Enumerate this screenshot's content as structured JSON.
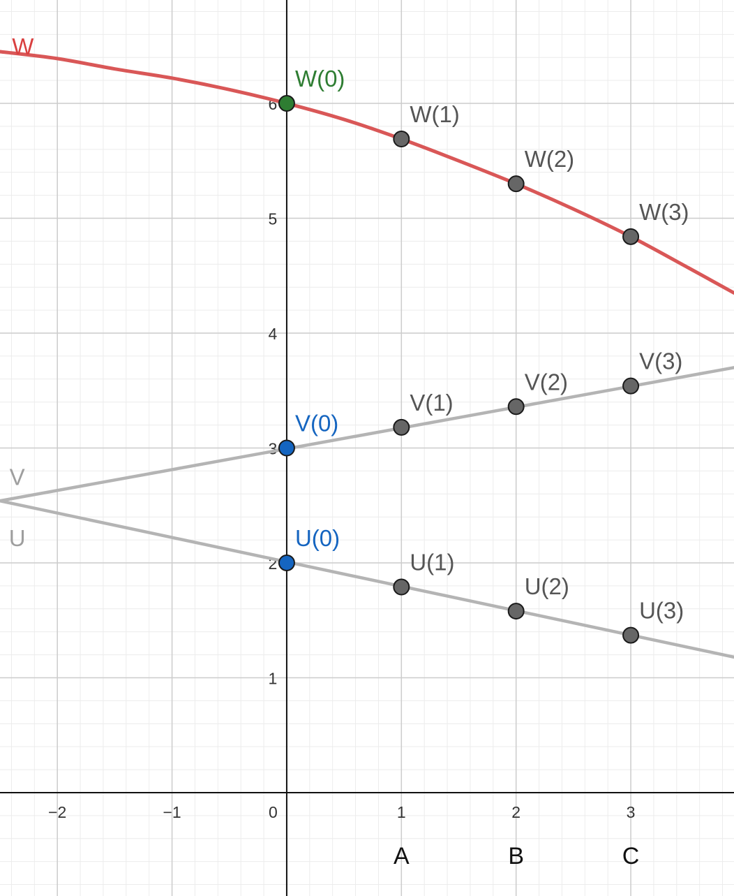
{
  "colors": {
    "W": "#d95757",
    "U": "#b4b4b4",
    "V": "#b4b4b4",
    "point_default": "#666666",
    "point_W0": "#2e7d32",
    "point_blue": "#1565c0",
    "label_default": "#555555",
    "axis": "#111111",
    "grid_major": "#cccccc",
    "grid_minor": "#ececec"
  },
  "chart_data": {
    "type": "line",
    "xlim": [
      -2.5,
      3.9
    ],
    "ylim": [
      -0.9,
      6.9
    ],
    "grid": true,
    "minor_grid_step": 0.2,
    "x_ticks": [
      {
        "value": -2,
        "label": "−2"
      },
      {
        "value": -1,
        "label": "−1"
      },
      {
        "value": 0,
        "label": "0"
      },
      {
        "value": 1,
        "label": "1"
      },
      {
        "value": 2,
        "label": "2"
      },
      {
        "value": 3,
        "label": "3"
      }
    ],
    "y_ticks": [
      {
        "value": 1,
        "label": "1"
      },
      {
        "value": 2,
        "label": "2"
      },
      {
        "value": 3,
        "label": "3"
      },
      {
        "value": 4,
        "label": "4"
      },
      {
        "value": 5,
        "label": "5"
      },
      {
        "value": 6,
        "label": "6"
      }
    ],
    "x_category_labels": [
      {
        "x": 1,
        "label": "A"
      },
      {
        "x": 2,
        "label": "B"
      },
      {
        "x": 3,
        "label": "C"
      }
    ],
    "series": [
      {
        "name": "W",
        "curve": [
          {
            "x": -2.5,
            "y": 6.45
          },
          {
            "x": -2.0,
            "y": 6.39
          },
          {
            "x": -1.5,
            "y": 6.3
          },
          {
            "x": -1.0,
            "y": 6.22
          },
          {
            "x": -0.5,
            "y": 6.12
          },
          {
            "x": 0.0,
            "y": 6.0
          },
          {
            "x": 0.5,
            "y": 5.86
          },
          {
            "x": 1.0,
            "y": 5.69
          },
          {
            "x": 1.5,
            "y": 5.5
          },
          {
            "x": 2.0,
            "y": 5.3
          },
          {
            "x": 2.5,
            "y": 5.08
          },
          {
            "x": 3.0,
            "y": 4.84
          },
          {
            "x": 3.5,
            "y": 4.57
          },
          {
            "x": 3.9,
            "y": 4.35
          }
        ],
        "points": [
          {
            "x": 0,
            "y": 6.0,
            "label": "W(0)",
            "style": "green"
          },
          {
            "x": 1,
            "y": 5.69,
            "label": "W(1)",
            "style": "default"
          },
          {
            "x": 2,
            "y": 5.3,
            "label": "W(2)",
            "style": "default"
          },
          {
            "x": 3,
            "y": 4.84,
            "label": "W(3)",
            "style": "default"
          }
        ],
        "name_label_position": {
          "x": -2.3,
          "y": 6.5
        }
      },
      {
        "name": "V",
        "curve": [
          {
            "x": -2.5,
            "y": 2.54
          },
          {
            "x": 3.9,
            "y": 3.7
          }
        ],
        "points": [
          {
            "x": 0,
            "y": 3.0,
            "label": "V(0)",
            "style": "blue"
          },
          {
            "x": 1,
            "y": 3.18,
            "label": "V(1)",
            "style": "default"
          },
          {
            "x": 2,
            "y": 3.36,
            "label": "V(2)",
            "style": "default"
          },
          {
            "x": 3,
            "y": 3.54,
            "label": "V(3)",
            "style": "default"
          }
        ],
        "name_label_position": {
          "x": -2.35,
          "y": 2.75
        }
      },
      {
        "name": "U",
        "curve": [
          {
            "x": -2.5,
            "y": 2.54
          },
          {
            "x": 3.9,
            "y": 1.18
          }
        ],
        "points": [
          {
            "x": 0,
            "y": 2.0,
            "label": "U(0)",
            "style": "blue"
          },
          {
            "x": 1,
            "y": 1.79,
            "label": "U(1)",
            "style": "default"
          },
          {
            "x": 2,
            "y": 1.58,
            "label": "U(2)",
            "style": "default"
          },
          {
            "x": 3,
            "y": 1.37,
            "label": "U(3)",
            "style": "default"
          }
        ],
        "name_label_position": {
          "x": -2.35,
          "y": 2.22
        }
      }
    ]
  }
}
